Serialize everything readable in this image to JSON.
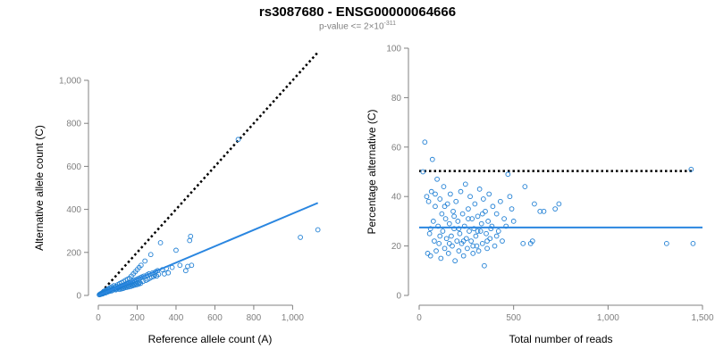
{
  "title": "rs3087680 - ENSG00000064666",
  "subtitle": {
    "prefix": "p-value <= 2×10",
    "exponent": "-311"
  },
  "colors": {
    "points": "#1f7fd4",
    "fit_line": "#2a86e0",
    "reference_line": "#000000",
    "axis": "#808080"
  },
  "chart_data": [
    {
      "type": "scatter",
      "xlabel": "Reference allele count (A)",
      "ylabel": "Alternative allele count (C)",
      "xlim": [
        0,
        1150
      ],
      "ylim": [
        0,
        1000
      ],
      "xticks": [
        0,
        200,
        400,
        600,
        800,
        1000
      ],
      "xtick_labels": [
        "0",
        "200",
        "400",
        "600",
        "800",
        "1,000"
      ],
      "yticks": [
        0,
        200,
        400,
        600,
        800,
        1000
      ],
      "ytick_labels": [
        "0",
        "200",
        "400",
        "600",
        "800",
        "1,000"
      ],
      "grid": false,
      "points": [
        [
          5,
          3
        ],
        [
          8,
          5
        ],
        [
          10,
          4
        ],
        [
          12,
          8
        ],
        [
          15,
          6
        ],
        [
          18,
          10
        ],
        [
          20,
          12
        ],
        [
          22,
          7
        ],
        [
          25,
          15
        ],
        [
          28,
          10
        ],
        [
          30,
          20
        ],
        [
          32,
          14
        ],
        [
          35,
          18
        ],
        [
          38,
          12
        ],
        [
          40,
          25
        ],
        [
          42,
          17
        ],
        [
          45,
          22
        ],
        [
          48,
          16
        ],
        [
          50,
          30
        ],
        [
          52,
          20
        ],
        [
          55,
          26
        ],
        [
          58,
          19
        ],
        [
          60,
          35
        ],
        [
          62,
          24
        ],
        [
          65,
          28
        ],
        [
          68,
          21
        ],
        [
          70,
          40
        ],
        [
          72,
          30
        ],
        [
          75,
          25
        ],
        [
          78,
          34
        ],
        [
          80,
          45
        ],
        [
          82,
          28
        ],
        [
          85,
          32
        ],
        [
          88,
          38
        ],
        [
          90,
          26
        ],
        [
          92,
          42
        ],
        [
          95,
          30
        ],
        [
          98,
          36
        ],
        [
          100,
          50
        ],
        [
          102,
          33
        ],
        [
          105,
          40
        ],
        [
          108,
          28
        ],
        [
          110,
          55
        ],
        [
          112,
          35
        ],
        [
          115,
          44
        ],
        [
          118,
          30
        ],
        [
          120,
          60
        ],
        [
          122,
          38
        ],
        [
          125,
          47
        ],
        [
          128,
          32
        ],
        [
          130,
          65
        ],
        [
          132,
          40
        ],
        [
          135,
          50
        ],
        [
          138,
          36
        ],
        [
          140,
          70
        ],
        [
          142,
          43
        ],
        [
          145,
          55
        ],
        [
          148,
          38
        ],
        [
          150,
          75
        ],
        [
          152,
          45
        ],
        [
          155,
          58
        ],
        [
          158,
          40
        ],
        [
          160,
          80
        ],
        [
          162,
          48
        ],
        [
          165,
          62
        ],
        [
          168,
          42
        ],
        [
          170,
          90
        ],
        [
          172,
          50
        ],
        [
          175,
          66
        ],
        [
          178,
          45
        ],
        [
          180,
          100
        ],
        [
          182,
          52
        ],
        [
          185,
          70
        ],
        [
          188,
          48
        ],
        [
          190,
          110
        ],
        [
          192,
          55
        ],
        [
          195,
          74
        ],
        [
          198,
          50
        ],
        [
          200,
          120
        ],
        [
          202,
          58
        ],
        [
          205,
          78
        ],
        [
          208,
          53
        ],
        [
          210,
          130
        ],
        [
          212,
          60
        ],
        [
          215,
          82
        ],
        [
          218,
          56
        ],
        [
          220,
          140
        ],
        [
          225,
          86
        ],
        [
          230,
          65
        ],
        [
          235,
          90
        ],
        [
          240,
          160
        ],
        [
          245,
          70
        ],
        [
          250,
          95
        ],
        [
          255,
          75
        ],
        [
          260,
          100
        ],
        [
          265,
          80
        ],
        [
          270,
          190
        ],
        [
          275,
          85
        ],
        [
          280,
          105
        ],
        [
          285,
          88
        ],
        [
          290,
          95
        ],
        [
          295,
          110
        ],
        [
          300,
          90
        ],
        [
          305,
          115
        ],
        [
          310,
          98
        ],
        [
          320,
          245
        ],
        [
          330,
          120
        ],
        [
          340,
          100
        ],
        [
          350,
          125
        ],
        [
          360,
          105
        ],
        [
          380,
          130
        ],
        [
          400,
          210
        ],
        [
          420,
          140
        ],
        [
          450,
          115
        ],
        [
          460,
          135
        ],
        [
          470,
          255
        ],
        [
          475,
          275
        ],
        [
          480,
          140
        ],
        [
          720,
          725
        ],
        [
          1040,
          270
        ],
        [
          1130,
          305
        ]
      ],
      "fit_line": [
        [
          0,
          0
        ],
        [
          1130,
          430
        ]
      ],
      "reference_line": [
        [
          0,
          0
        ],
        [
          1130,
          1130
        ]
      ]
    },
    {
      "type": "scatter",
      "xlabel": "Total number of reads",
      "ylabel": "Percentage alternative (C)",
      "xlim": [
        0,
        1500
      ],
      "ylim": [
        0,
        100
      ],
      "xticks": [
        0,
        500,
        1000,
        1500
      ],
      "xtick_labels": [
        "0",
        "500",
        "1,000",
        "1,500"
      ],
      "yticks": [
        0,
        20,
        40,
        60,
        80,
        100
      ],
      "ytick_labels": [
        "0",
        "20",
        "40",
        "60",
        "80",
        "100"
      ],
      "grid": false,
      "points": [
        [
          20,
          50
        ],
        [
          30,
          62
        ],
        [
          40,
          40
        ],
        [
          45,
          17
        ],
        [
          50,
          38
        ],
        [
          55,
          25
        ],
        [
          60,
          16
        ],
        [
          65,
          42
        ],
        [
          70,
          55
        ],
        [
          75,
          30
        ],
        [
          80,
          22
        ],
        [
          85,
          36
        ],
        [
          90,
          18
        ],
        [
          95,
          47
        ],
        [
          100,
          28
        ],
        [
          105,
          21
        ],
        [
          110,
          39
        ],
        [
          115,
          15
        ],
        [
          120,
          33
        ],
        [
          125,
          26
        ],
        [
          130,
          44
        ],
        [
          135,
          19
        ],
        [
          140,
          31
        ],
        [
          145,
          23
        ],
        [
          150,
          37
        ],
        [
          155,
          17
        ],
        [
          160,
          29
        ],
        [
          165,
          41
        ],
        [
          170,
          24
        ],
        [
          175,
          20
        ],
        [
          180,
          34
        ],
        [
          185,
          27
        ],
        [
          190,
          14
        ],
        [
          195,
          38
        ],
        [
          200,
          22
        ],
        [
          205,
          30
        ],
        [
          210,
          18
        ],
        [
          215,
          25
        ],
        [
          220,
          42
        ],
        [
          225,
          21
        ],
        [
          230,
          33
        ],
        [
          235,
          16
        ],
        [
          240,
          28
        ],
        [
          245,
          45
        ],
        [
          250,
          23
        ],
        [
          255,
          19
        ],
        [
          260,
          35
        ],
        [
          265,
          26
        ],
        [
          270,
          40
        ],
        [
          275,
          22
        ],
        [
          280,
          31
        ],
        [
          285,
          17
        ],
        [
          290,
          27
        ],
        [
          295,
          37
        ],
        [
          300,
          24
        ],
        [
          305,
          20
        ],
        [
          310,
          32
        ],
        [
          315,
          18
        ],
        [
          320,
          43
        ],
        [
          325,
          26
        ],
        [
          330,
          29
        ],
        [
          335,
          21
        ],
        [
          340,
          39
        ],
        [
          345,
          12
        ],
        [
          350,
          34
        ],
        [
          355,
          25
        ],
        [
          360,
          22
        ],
        [
          365,
          30
        ],
        [
          370,
          41
        ],
        [
          375,
          23
        ],
        [
          380,
          27
        ],
        [
          390,
          36
        ],
        [
          400,
          20
        ],
        [
          410,
          33
        ],
        [
          420,
          26
        ],
        [
          430,
          38
        ],
        [
          440,
          22
        ],
        [
          450,
          31
        ],
        [
          460,
          28
        ],
        [
          470,
          49
        ],
        [
          480,
          40
        ],
        [
          490,
          35
        ],
        [
          500,
          30
        ],
        [
          550,
          21
        ],
        [
          560,
          44
        ],
        [
          590,
          21
        ],
        [
          600,
          22
        ],
        [
          610,
          37
        ],
        [
          640,
          34
        ],
        [
          660,
          34
        ],
        [
          720,
          35
        ],
        [
          740,
          37
        ],
        [
          1310,
          21
        ],
        [
          1440,
          51
        ],
        [
          1450,
          21
        ],
        [
          60,
          27
        ],
        [
          85,
          41
        ],
        [
          110,
          24
        ],
        [
          135,
          36
        ],
        [
          160,
          21
        ],
        [
          185,
          32
        ],
        [
          210,
          27
        ],
        [
          235,
          22
        ],
        [
          260,
          31
        ],
        [
          285,
          20
        ],
        [
          310,
          26
        ],
        [
          335,
          33
        ],
        [
          360,
          19
        ],
        [
          385,
          28
        ],
        [
          410,
          24
        ]
      ],
      "fit_line": [
        [
          0,
          27.5
        ],
        [
          1500,
          27.5
        ]
      ],
      "reference_line": [
        [
          0,
          50.3
        ],
        [
          1450,
          50.3
        ]
      ]
    }
  ]
}
